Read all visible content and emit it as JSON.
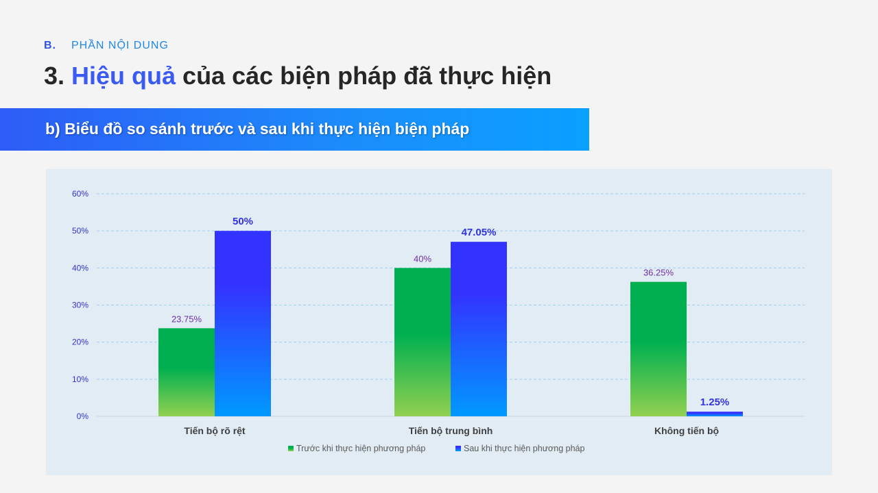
{
  "header": {
    "section_letter": "B.",
    "section_name": "PHẦN NỘI DUNG",
    "title_prefix": "3. ",
    "title_highlight": "Hiệu quả",
    "title_rest": " của các biện pháp đã thực hiện"
  },
  "banner": {
    "text": "b) Biểu đồ so sánh trước và sau khi thực hiện biện pháp"
  },
  "colors": {
    "before_top": "#00b050",
    "before_bottom": "#92d050",
    "after_top": "#3333ff",
    "after_bottom": "#0099ff",
    "before_label": "#7030a0",
    "after_label": "#3333dd",
    "axis_text": "#3333cc",
    "grid": "#9fcfee"
  },
  "chart_data": {
    "type": "bar",
    "categories": [
      "Tiến bộ rõ rệt",
      "Tiến bộ trung bình",
      "Không tiến bộ"
    ],
    "series": [
      {
        "name": "Trước khi thực hiện phương pháp",
        "values": [
          23.75,
          40,
          36.25
        ],
        "labels": [
          "23.75%",
          "40%",
          "36.25%"
        ]
      },
      {
        "name": "Sau khi thực hiện phương pháp",
        "values": [
          50,
          47.05,
          1.25
        ],
        "labels": [
          "50%",
          "47.05%",
          "1.25%"
        ]
      }
    ],
    "ylim": [
      0,
      60
    ],
    "yticks": [
      0,
      10,
      20,
      30,
      40,
      50,
      60
    ],
    "ytick_labels": [
      "0%",
      "10%",
      "20%",
      "30%",
      "40%",
      "50%",
      "60%"
    ],
    "grid": true,
    "legend": "bottom"
  }
}
